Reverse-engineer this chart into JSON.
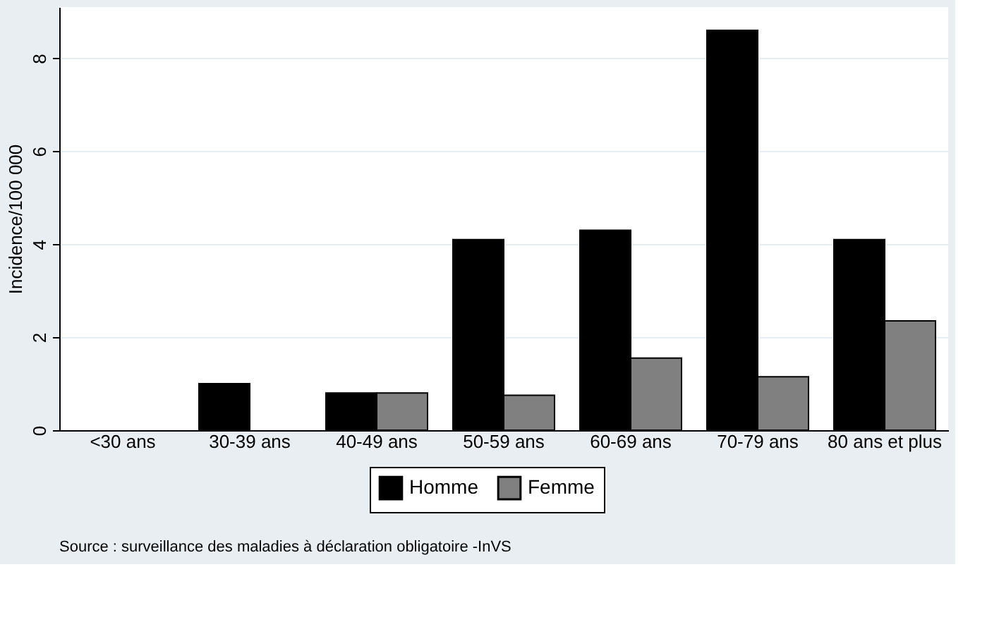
{
  "chart_data": {
    "type": "bar",
    "ylabel": "Incidence/100 000",
    "categories": [
      "<30 ans",
      "30-39 ans",
      "40-49 ans",
      "50-59 ans",
      "60-69 ans",
      "70-79 ans",
      "80 ans et plus"
    ],
    "series": [
      {
        "name": "Homme",
        "color": "#000000",
        "values": [
          0,
          1.0,
          0.8,
          4.1,
          4.3,
          8.6,
          4.1
        ]
      },
      {
        "name": "Femme",
        "color": "#808080",
        "values": [
          0,
          0,
          0.8,
          0.75,
          1.55,
          1.15,
          2.35
        ]
      }
    ],
    "ylim": [
      0,
      9.1
    ],
    "yticks": [
      0,
      2,
      4,
      6,
      8
    ],
    "grid": "y",
    "legend": "bottom",
    "annotations": [
      "Source : surveillance des maladies à déclaration obligatoire -InVS"
    ]
  }
}
